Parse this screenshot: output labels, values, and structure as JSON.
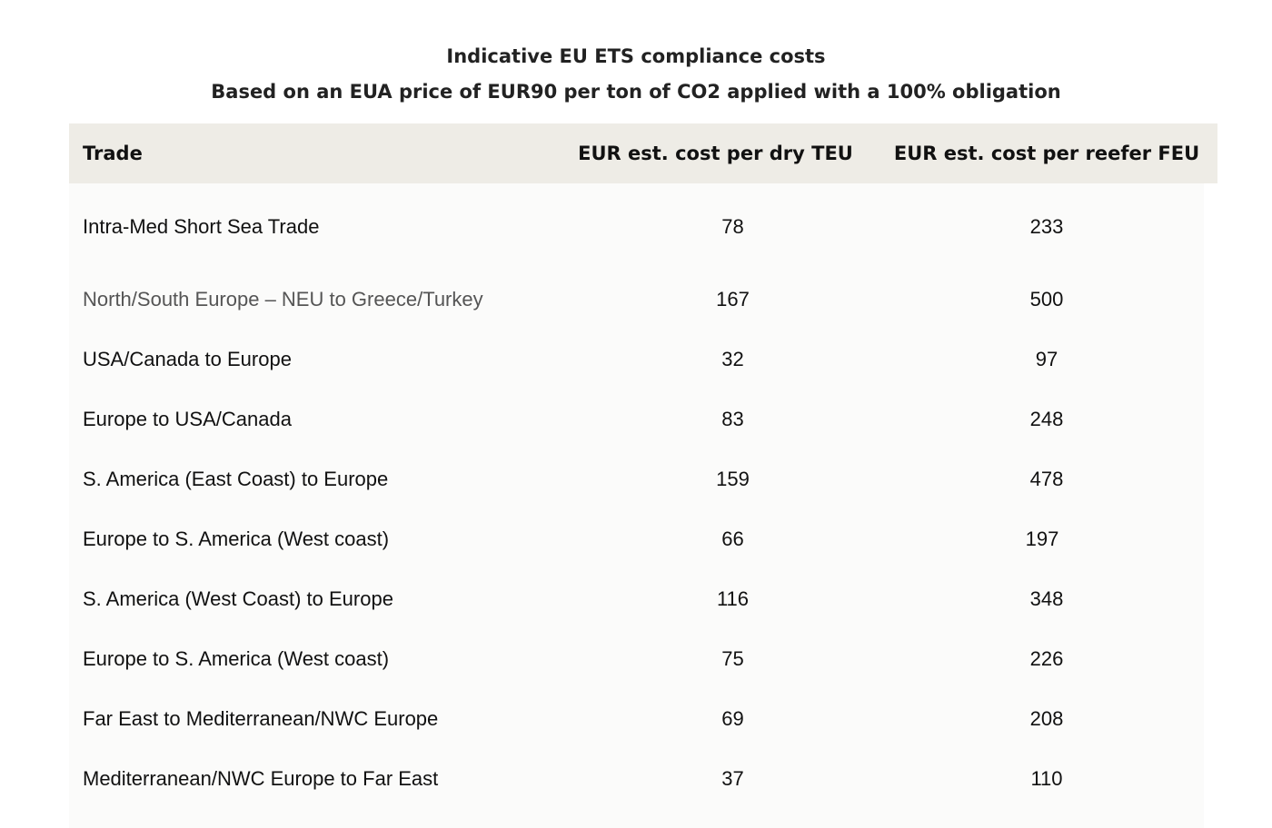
{
  "title": "Indicative EU ETS compliance costs",
  "subtitle": "Based on an EUA price of EUR90 per ton of CO2 applied with a 100% obligation",
  "columns": {
    "trade": "Trade",
    "dry": "EUR est. cost per dry TEU",
    "reefer": "EUR est. cost per reefer FEU"
  },
  "rows": [
    {
      "trade": "Intra-Med Short Sea Trade",
      "dry": "78",
      "reefer": "233"
    },
    {
      "trade": "North/South Europe – NEU to Greece/Turkey",
      "dry": "167",
      "reefer": "500"
    },
    {
      "trade": "USA/Canada to Europe",
      "dry": "32",
      "reefer": "97"
    },
    {
      "trade": "Europe to USA/Canada",
      "dry": "83",
      "reefer": "248"
    },
    {
      "trade": "S. America (East Coast) to Europe",
      "dry": "159",
      "reefer": "478"
    },
    {
      "trade": "Europe to S. America (West coast)",
      "dry": "66",
      "reefer": "197"
    },
    {
      "trade": "S. America (West Coast) to Europe",
      "dry": "116",
      "reefer": "348"
    },
    {
      "trade": "Europe to S. America (West coast)",
      "dry": "75",
      "reefer": "226"
    },
    {
      "trade": "Far East to Mediterranean/NWC Europe",
      "dry": "69",
      "reefer": "208"
    },
    {
      "trade": "Mediterranean/NWC Europe to Far East",
      "dry": "37",
      "reefer": "110"
    }
  ]
}
